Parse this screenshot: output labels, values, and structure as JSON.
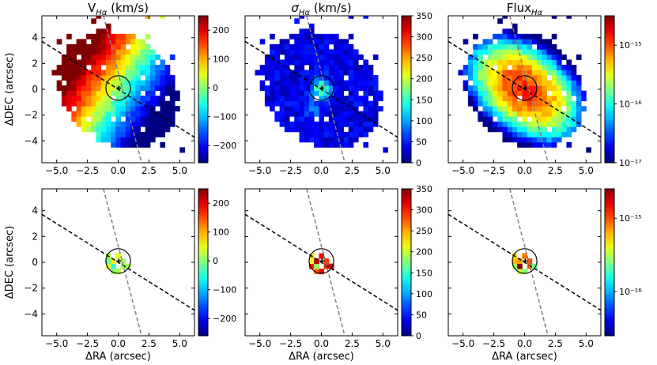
{
  "figure": {
    "description_type": "6-panel IFU kinematic maps",
    "xlabel": "ΔRA (arcsec)",
    "ylabel": "ΔDEC (arcsec)",
    "xticks": [
      "−5.0",
      "−2.5",
      "0.0",
      "2.5",
      "5.0"
    ],
    "yticks": [
      "−4",
      "−2",
      "0",
      "2",
      "4"
    ],
    "xlim": [
      -6.2,
      6.2
    ],
    "ylim": [
      -5.7,
      5.7
    ]
  },
  "chart_data": [
    {
      "type": "heatmap",
      "title": "V",
      "title_sub": "Hα",
      "title_unit": " (km/s)",
      "field": "velocity",
      "row": 0,
      "col": 0,
      "colorbar": {
        "scale": "linear",
        "min": -260,
        "max": 250,
        "ticks": [
          "200",
          "100",
          "0",
          "−100",
          "−200"
        ],
        "tick_values": [
          200,
          100,
          0,
          -100,
          -200
        ]
      }
    },
    {
      "type": "heatmap",
      "title": "σ",
      "title_sub": "Hα",
      "title_unit": " (km/s)",
      "field": "dispersion",
      "row": 0,
      "col": 1,
      "colorbar": {
        "scale": "linear",
        "min": 0,
        "max": 350,
        "ticks": [
          "350",
          "300",
          "250",
          "200",
          "150",
          "100",
          "50",
          "0"
        ],
        "tick_values": [
          350,
          300,
          250,
          200,
          150,
          100,
          50,
          0
        ]
      }
    },
    {
      "type": "heatmap",
      "title": "Flux",
      "title_sub": "Hα",
      "title_unit": "",
      "field": "flux",
      "row": 0,
      "col": 2,
      "colorbar": {
        "scale": "log",
        "min": -17,
        "max": -14.5,
        "ticks": [
          "10⁻¹⁵",
          "10⁻¹⁶",
          "10⁻¹⁷"
        ],
        "tick_values": [
          -15,
          -16,
          -17
        ]
      }
    },
    {
      "type": "heatmap",
      "title": "",
      "field": "velocity_core",
      "row": 1,
      "col": 0,
      "colorbar": {
        "scale": "linear",
        "min": -260,
        "max": 250,
        "ticks": [
          "200",
          "100",
          "0",
          "−100",
          "−200"
        ],
        "tick_values": [
          200,
          100,
          0,
          -100,
          -200
        ]
      }
    },
    {
      "type": "heatmap",
      "title": "",
      "field": "dispersion_core",
      "row": 1,
      "col": 1,
      "colorbar": {
        "scale": "linear",
        "min": 0,
        "max": 350,
        "ticks": [
          "350",
          "300",
          "250",
          "200",
          "150",
          "100",
          "50",
          "0"
        ],
        "tick_values": [
          350,
          300,
          250,
          200,
          150,
          100,
          50,
          0
        ]
      }
    },
    {
      "type": "heatmap",
      "title": "",
      "field": "flux_core",
      "row": 1,
      "col": 2,
      "colorbar": {
        "scale": "log",
        "min": -16.6,
        "max": -14.6,
        "ticks": [
          "10⁻¹⁵",
          "10⁻¹⁶"
        ],
        "tick_values": [
          -15,
          -16
        ]
      }
    }
  ],
  "overlays": {
    "black_dashed_line": {
      "slope": -0.6,
      "color": "#000000"
    },
    "gray_dashed_line": {
      "x_at_y_top": -1.2,
      "x_at_y_bottom": 1.9,
      "color": "#808080"
    },
    "circle": {
      "center": [
        0.0,
        0.1
      ],
      "radius_arcsec": 1.0
    }
  }
}
